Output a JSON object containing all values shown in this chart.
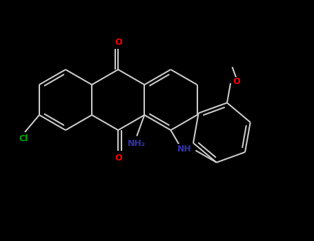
{
  "background": "#000000",
  "bond_color": "#cccccc",
  "bond_width": 1.5,
  "atom_colors": {
    "O": "#ff0000",
    "N": "#3333aa",
    "Cl": "#00aa00",
    "C": "#cccccc"
  },
  "figsize": [
    4.55,
    3.5
  ],
  "dpi": 100,
  "xlim": [
    0,
    9.1
  ],
  "ylim": [
    0,
    7.0
  ]
}
